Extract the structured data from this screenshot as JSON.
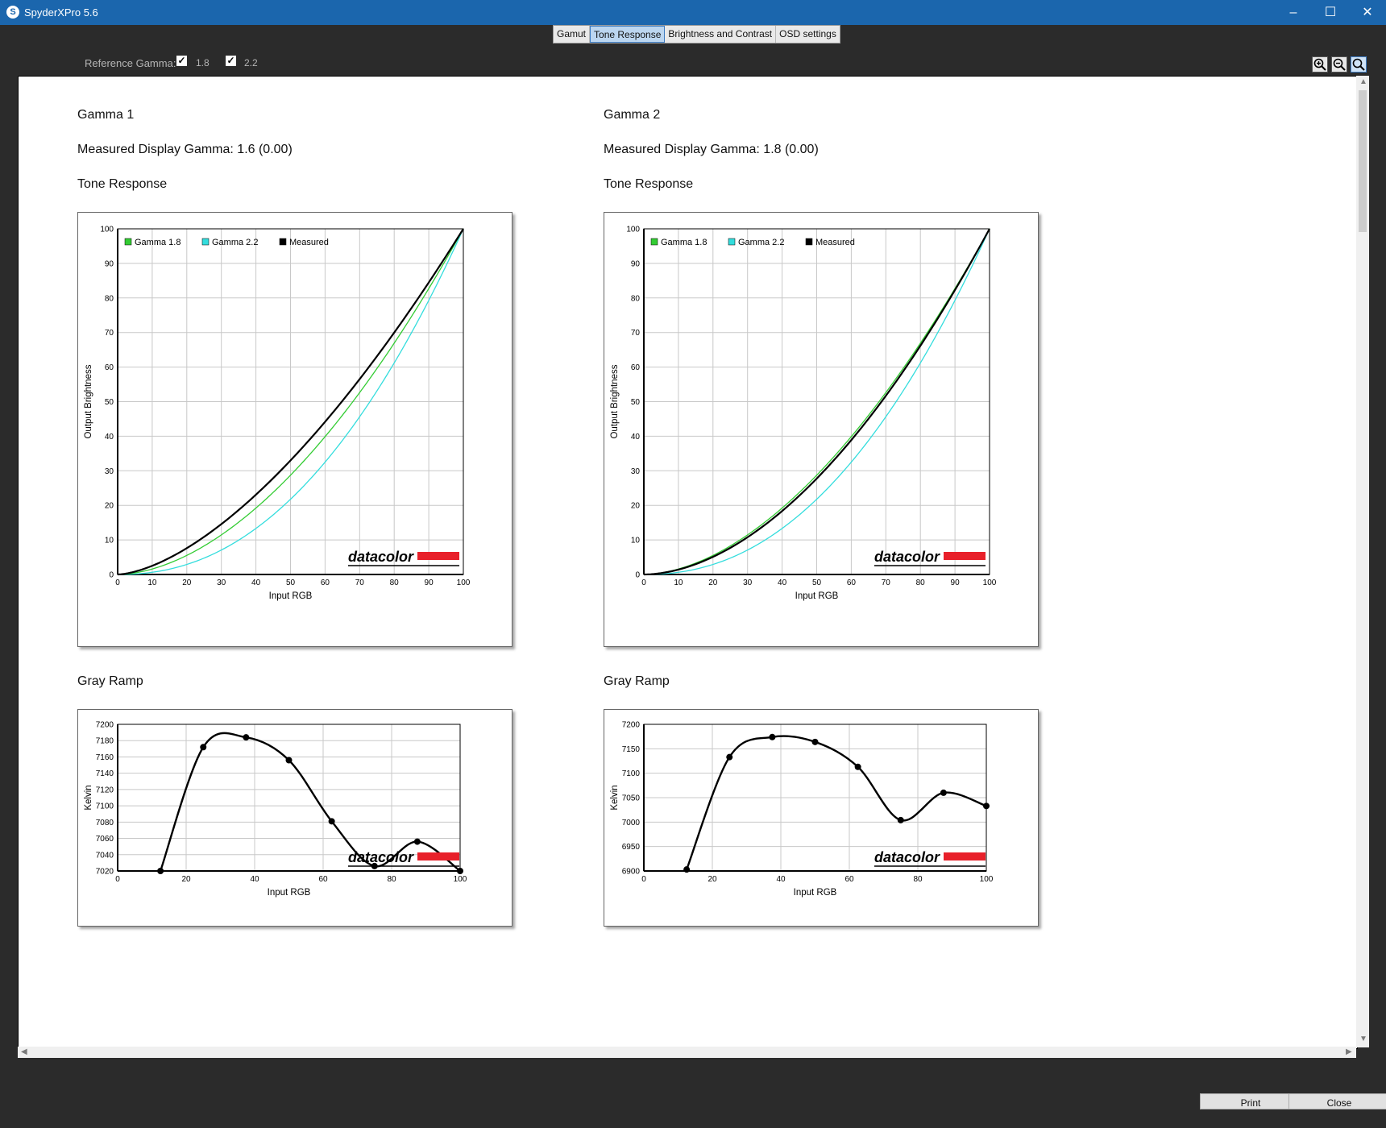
{
  "window": {
    "title": "SpyderXPro 5.6"
  },
  "tabs": [
    {
      "label": "Gamut",
      "active": false
    },
    {
      "label": "Tone Response",
      "active": true
    },
    {
      "label": "Brightness and Contrast",
      "active": false
    },
    {
      "label": "OSD settings",
      "active": false
    }
  ],
  "toolbar": {
    "reference_label": "Reference Gamma:",
    "gamma_18": {
      "label": "1.8",
      "checked": true
    },
    "gamma_22": {
      "label": "2.2",
      "checked": true
    },
    "zoom_in_icon": "zoom-in-icon",
    "zoom_out_icon": "zoom-out-icon",
    "zoom_fit_icon": "zoom-fit-icon"
  },
  "panels": [
    {
      "title": "Gamma 1",
      "measured": "Measured Display Gamma: 1.6 (0.00)",
      "tone_heading": "Tone Response",
      "ramp_heading": "Gray Ramp"
    },
    {
      "title": "Gamma 2",
      "measured": "Measured Display Gamma: 1.8 (0.00)",
      "tone_heading": "Tone Response",
      "ramp_heading": "Gray Ramp"
    }
  ],
  "logo_text": "datacolor",
  "colors": {
    "gamma18": "#33cc33",
    "gamma22": "#33dddd",
    "measured": "#000000",
    "logo_bar": "#e8202a",
    "titlebar": "#1b66ad"
  },
  "buttons": {
    "print": "Print",
    "close": "Close"
  },
  "chart_data": [
    {
      "type": "line",
      "xlabel": "Input RGB",
      "ylabel": "Output Brightness",
      "xlim": [
        0,
        100
      ],
      "ylim": [
        0,
        100
      ],
      "xticks": [
        "0",
        "10",
        "20",
        "30",
        "40",
        "50",
        "60",
        "70",
        "80",
        "90",
        "100"
      ],
      "yticks": [
        "0",
        "10",
        "20",
        "30",
        "40",
        "50",
        "60",
        "70",
        "80",
        "90",
        "100"
      ],
      "grid": true,
      "legend": "top-left",
      "series": [
        {
          "name": "Gamma 1.8",
          "gamma": 1.8,
          "color": "#33cc33"
        },
        {
          "name": "Gamma 2.2",
          "gamma": 2.2,
          "color": "#33dddd"
        },
        {
          "name": "Measured",
          "gamma": 1.6,
          "color": "#000000"
        }
      ]
    },
    {
      "type": "line",
      "xlabel": "Input RGB",
      "ylabel": "Kelvin",
      "xlim": [
        0,
        100
      ],
      "ylim": [
        7020,
        7200
      ],
      "xticks": [
        "0",
        "20",
        "40",
        "60",
        "80",
        "100"
      ],
      "yticks": [
        "7020",
        "7040",
        "7060",
        "7080",
        "7100",
        "7120",
        "7140",
        "7160",
        "7180",
        "7200"
      ],
      "grid": true,
      "series": [
        {
          "name": "",
          "x": [
            12.5,
            25,
            37.5,
            50,
            62.5,
            75,
            87.5,
            100
          ],
          "y": [
            7020,
            7172,
            7184,
            7156,
            7081,
            7026,
            7056,
            7020
          ]
        }
      ]
    },
    {
      "type": "line",
      "xlabel": "Input RGB",
      "ylabel": "Output Brightness",
      "xlim": [
        0,
        100
      ],
      "ylim": [
        0,
        100
      ],
      "xticks": [
        "0",
        "10",
        "20",
        "30",
        "40",
        "50",
        "60",
        "70",
        "80",
        "90",
        "100"
      ],
      "yticks": [
        "0",
        "10",
        "20",
        "30",
        "40",
        "50",
        "60",
        "70",
        "80",
        "90",
        "100"
      ],
      "grid": true,
      "legend": "top-left",
      "series": [
        {
          "name": "Gamma 1.8",
          "gamma": 1.8,
          "color": "#33cc33"
        },
        {
          "name": "Gamma 2.2",
          "gamma": 2.2,
          "color": "#33dddd"
        },
        {
          "name": "Measured",
          "gamma": 1.85,
          "color": "#000000"
        }
      ]
    },
    {
      "type": "line",
      "xlabel": "Input RGB",
      "ylabel": "Kelvin",
      "xlim": [
        0,
        100
      ],
      "ylim": [
        6900,
        7200
      ],
      "xticks": [
        "0",
        "20",
        "40",
        "60",
        "80",
        "100"
      ],
      "yticks": [
        "6900",
        "6950",
        "7000",
        "7050",
        "7100",
        "7150",
        "7200"
      ],
      "grid": true,
      "series": [
        {
          "name": "",
          "x": [
            12.5,
            25,
            37.5,
            50,
            62.5,
            75,
            87.5,
            100
          ],
          "y": [
            6903,
            7133,
            7174,
            7164,
            7113,
            7004,
            7060,
            7033
          ]
        }
      ]
    }
  ]
}
